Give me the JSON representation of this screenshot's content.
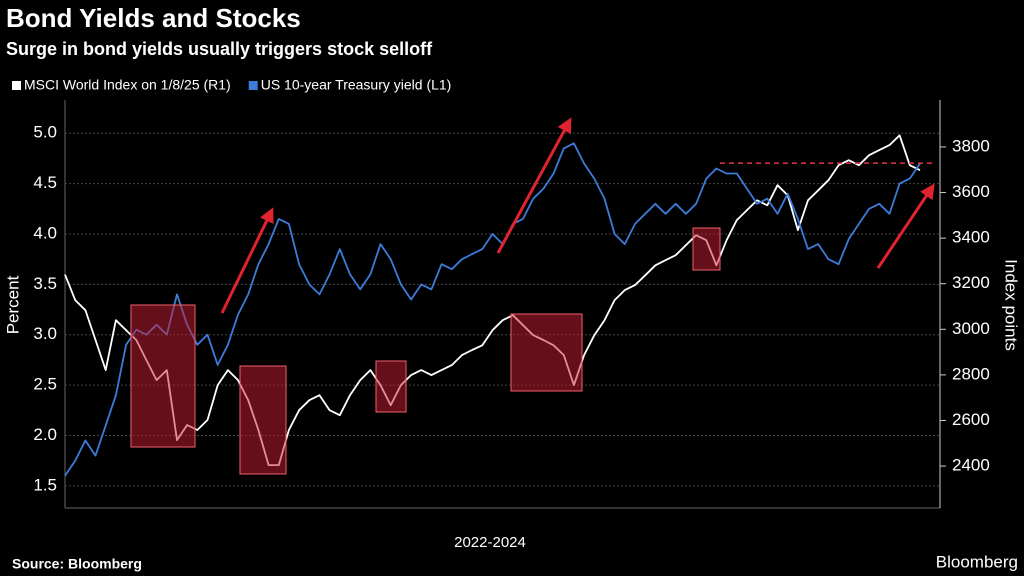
{
  "chart_data": {
    "type": "line",
    "title": "Bond Yields and Stocks",
    "subtitle": "Surge in bond yields usually triggers stock selloff",
    "xlabel": "2022-2024",
    "ylabel": "Percent",
    "y2label": "Index points",
    "source": "Source: Bloomberg",
    "brand": "Bloomberg",
    "grid": true,
    "ylim": [
      1.28,
      5.33
    ],
    "yticks": [
      1.5,
      {
        "value": 2,
        "label": "2.0"
      },
      2.5,
      {
        "value": 3,
        "label": "3.0"
      },
      3.5,
      {
        "value": 4,
        "label": "4.0"
      },
      4.5,
      {
        "value": 5,
        "label": "5.0"
      }
    ],
    "y2lim": [
      2216,
      4006
    ],
    "y2ticks": [
      2400,
      2600,
      2800,
      3000,
      3200,
      3400,
      3600,
      3800
    ],
    "reference_line": {
      "value": 3729,
      "axis": "y2",
      "color": "#e0334a"
    },
    "series": [
      {
        "name": "MSCI World Index on 1/8/25 (R1)",
        "color": "#ffffff",
        "axis": "y2",
        "values": [
          3240,
          3128,
          3084,
          2953,
          2821,
          3040,
          2996,
          2953,
          2865,
          2777,
          2821,
          2514,
          2580,
          2558,
          2602,
          2755,
          2821,
          2777,
          2689,
          2558,
          2404,
          2404,
          2558,
          2645,
          2689,
          2711,
          2645,
          2623,
          2711,
          2777,
          2821,
          2755,
          2667,
          2755,
          2799,
          2821,
          2799,
          2821,
          2843,
          2887,
          2909,
          2930,
          2996,
          3040,
          3062,
          3018,
          2974,
          2953,
          2930,
          2887,
          2755,
          2887,
          2974,
          3040,
          3128,
          3172,
          3194,
          3237,
          3281,
          3303,
          3325,
          3369,
          3413,
          3391,
          3281,
          3391,
          3479,
          3523,
          3566,
          3544,
          3632,
          3588,
          3435,
          3566,
          3610,
          3654,
          3720,
          3742,
          3720,
          3764,
          3786,
          3808,
          3851,
          3720,
          3698
        ]
      },
      {
        "name": "US 10-year Treasury yield (L1)",
        "color": "#3d7bd9",
        "values": [
          1.6,
          1.75,
          1.95,
          1.8,
          2.1,
          2.4,
          2.9,
          3.05,
          3.0,
          3.1,
          3.0,
          3.4,
          3.1,
          2.9,
          3.0,
          2.7,
          2.9,
          3.2,
          3.4,
          3.7,
          3.9,
          4.15,
          4.1,
          3.7,
          3.5,
          3.4,
          3.6,
          3.85,
          3.6,
          3.45,
          3.6,
          3.9,
          3.75,
          3.5,
          3.35,
          3.5,
          3.45,
          3.7,
          3.65,
          3.75,
          3.8,
          3.85,
          4.0,
          3.9,
          4.1,
          4.15,
          4.35,
          4.45,
          4.6,
          4.85,
          4.9,
          4.7,
          4.55,
          4.35,
          4.0,
          3.9,
          4.1,
          4.2,
          4.3,
          4.2,
          4.3,
          4.2,
          4.3,
          4.55,
          4.65,
          4.6,
          4.6,
          4.45,
          4.3,
          4.35,
          4.2,
          4.4,
          4.15,
          3.85,
          3.9,
          3.75,
          3.7,
          3.95,
          4.1,
          4.25,
          4.3,
          4.2,
          4.5,
          4.55,
          4.7
        ]
      }
    ]
  }
}
